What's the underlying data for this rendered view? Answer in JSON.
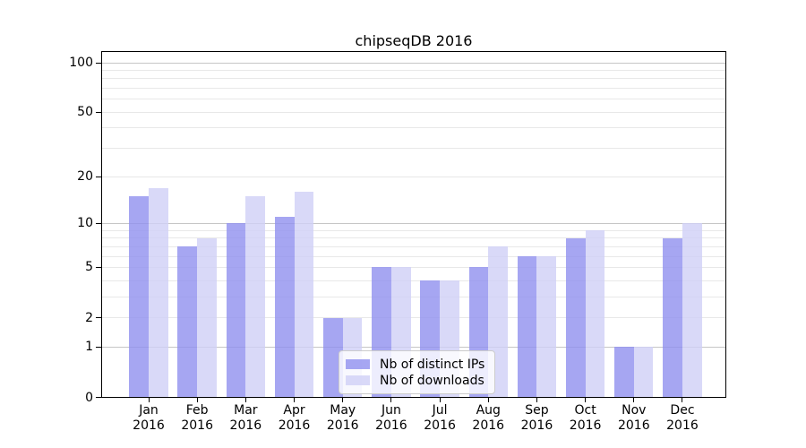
{
  "title": "chipseqDB 2016",
  "chart_data": {
    "type": "bar",
    "title": "chipseqDB 2016",
    "xlabel": "",
    "ylabel": "",
    "y_scale": "log10(value+1)",
    "ylim": [
      0,
      117
    ],
    "grid": true,
    "legend_position": "lower center",
    "categories": [
      "Jan",
      "Feb",
      "Mar",
      "Apr",
      "May",
      "Jun",
      "Jul",
      "Aug",
      "Sep",
      "Oct",
      "Nov",
      "Dec"
    ],
    "category_year": "2016",
    "series": [
      {
        "name": "Nb of distinct IPs",
        "color": "#9090ef",
        "alpha": 0.8,
        "values": [
          15,
          7,
          10,
          11,
          2,
          5,
          4,
          5,
          6,
          8,
          1,
          8
        ]
      },
      {
        "name": "Nb of downloads",
        "color": "#d0d0f6",
        "alpha": 0.8,
        "values": [
          17,
          8,
          15,
          16,
          2,
          5,
          4,
          7,
          6,
          9,
          1,
          10
        ]
      }
    ],
    "y_tick_labels": [
      0,
      1,
      2,
      5,
      10,
      20,
      50,
      100
    ],
    "y_major_gridlines": [
      1,
      10,
      100
    ],
    "y_light_gridlines": [
      2,
      3,
      4,
      5,
      6,
      7,
      8,
      9,
      20,
      30,
      40,
      50,
      60,
      70,
      80,
      90
    ]
  },
  "colors": {
    "grid_major": "#c6c6c6",
    "grid_minor": "#e8e8e8",
    "axis": "#000000",
    "text": "#000000",
    "legend_border": "#cccccc"
  }
}
